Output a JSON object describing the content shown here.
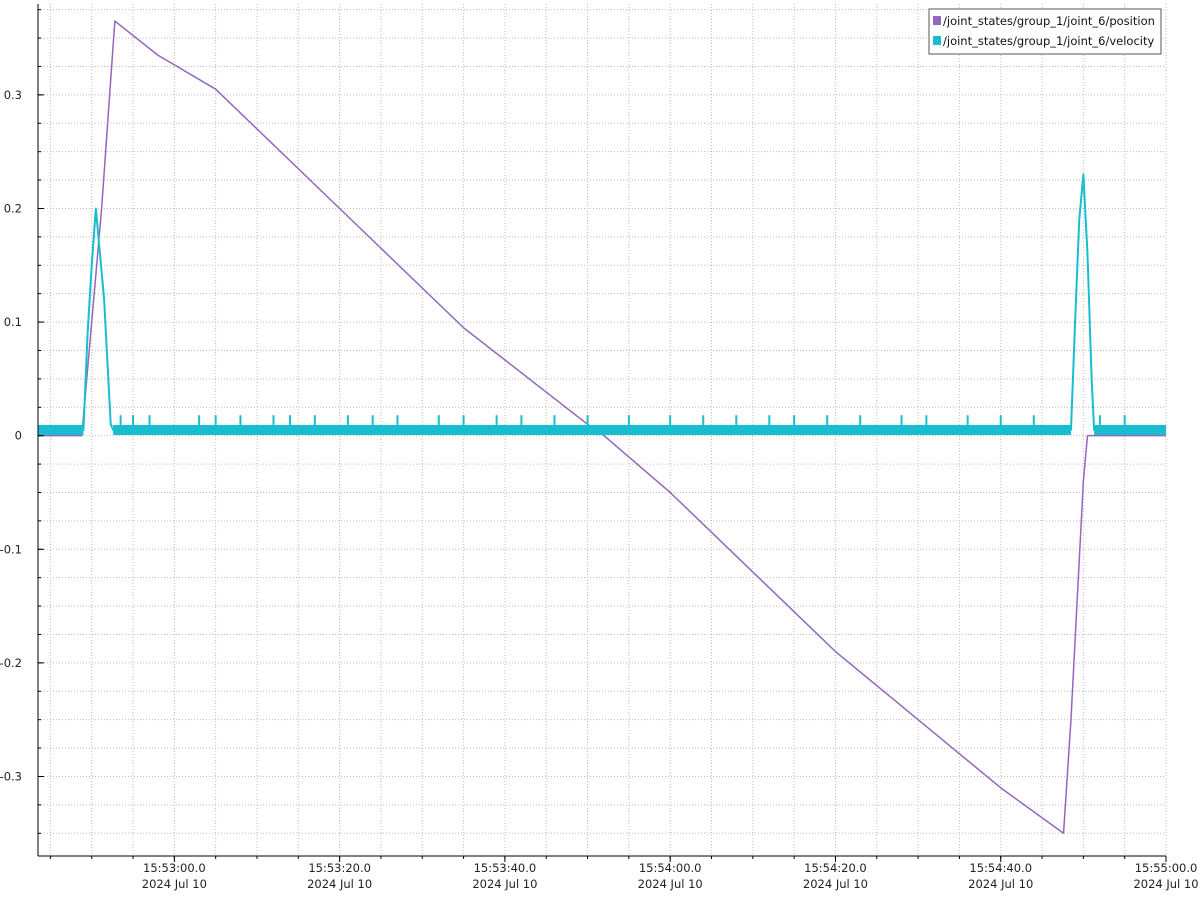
{
  "chart_data": {
    "type": "line",
    "title": "",
    "xlabel": "",
    "ylabel": "",
    "x_axis": {
      "unit": "datetime",
      "date": "2024 Jul 10",
      "range": [
        "15:52:43.5",
        "15:55:00.0"
      ],
      "ticks": [
        {
          "time": "15:53:00.0",
          "date": "2024 Jul 10"
        },
        {
          "time": "15:53:20.0",
          "date": "2024 Jul 10"
        },
        {
          "time": "15:53:40.0",
          "date": "2024 Jul 10"
        },
        {
          "time": "15:54:00.0",
          "date": "2024 Jul 10"
        },
        {
          "time": "15:54:20.0",
          "date": "2024 Jul 10"
        },
        {
          "time": "15:54:40.0",
          "date": "2024 Jul 10"
        },
        {
          "time": "15:55:00.0",
          "date": "2024 Jul 10"
        }
      ]
    },
    "y_axis": {
      "range": [
        -0.37,
        0.38
      ],
      "ticks": [
        "-0.3",
        "-0.2",
        "-0.1",
        "0",
        "0.1",
        "0.2",
        "0.3"
      ]
    },
    "grid": true,
    "legend": "top-right",
    "series": [
      {
        "name": "/joint_states/group_1/joint_6/position",
        "color": "#9467bd",
        "points": [
          {
            "x": "15:52:43.5",
            "y": 0.0
          },
          {
            "x": "15:52:48.8",
            "y": 0.0
          },
          {
            "x": "15:52:51.2",
            "y": 0.2
          },
          {
            "x": "15:52:52.8",
            "y": 0.365
          },
          {
            "x": "15:52:58.0",
            "y": 0.335
          },
          {
            "x": "15:53:05.0",
            "y": 0.305
          },
          {
            "x": "15:53:20.0",
            "y": 0.2
          },
          {
            "x": "15:53:35.0",
            "y": 0.095
          },
          {
            "x": "15:53:50.0",
            "y": 0.01
          },
          {
            "x": "15:53:52.0",
            "y": 0.0
          },
          {
            "x": "15:54:00.0",
            "y": -0.05
          },
          {
            "x": "15:54:20.0",
            "y": -0.19
          },
          {
            "x": "15:54:40.0",
            "y": -0.31
          },
          {
            "x": "15:54:47.6",
            "y": -0.35
          },
          {
            "x": "15:54:48.5",
            "y": -0.25
          },
          {
            "x": "15:54:50.0",
            "y": -0.04
          },
          {
            "x": "15:54:50.5",
            "y": 0.0
          },
          {
            "x": "15:55:00.0",
            "y": 0.0
          }
        ]
      },
      {
        "name": "/joint_states/group_1/joint_6/velocity",
        "color": "#17becf",
        "baseline": 0.005,
        "spike_level": 0.018,
        "points": [
          {
            "x": "15:52:43.5",
            "y": 0.005
          },
          {
            "x": "15:52:49.0",
            "y": 0.005
          },
          {
            "x": "15:52:49.5",
            "y": 0.09
          },
          {
            "x": "15:52:50.0",
            "y": 0.15
          },
          {
            "x": "15:52:50.5",
            "y": 0.2
          },
          {
            "x": "15:52:51.0",
            "y": 0.16
          },
          {
            "x": "15:52:51.5",
            "y": 0.12
          },
          {
            "x": "15:52:52.3",
            "y": 0.01
          },
          {
            "x": "15:52:52.6",
            "y": 0.005
          },
          {
            "x": "15:54:48.5",
            "y": 0.005
          },
          {
            "x": "15:54:49.0",
            "y": 0.1
          },
          {
            "x": "15:54:49.5",
            "y": 0.19
          },
          {
            "x": "15:54:50.0",
            "y": 0.23
          },
          {
            "x": "15:54:50.5",
            "y": 0.16
          },
          {
            "x": "15:54:51.0",
            "y": 0.05
          },
          {
            "x": "15:54:51.3",
            "y": 0.005
          },
          {
            "x": "15:55:00.0",
            "y": 0.005
          }
        ],
        "spikes_at": [
          "15:52:53.5",
          "15:52:55.0",
          "15:52:57.0",
          "15:53:03.0",
          "15:53:05.0",
          "15:53:08.0",
          "15:53:12.0",
          "15:53:14.0",
          "15:53:17.0",
          "15:53:21.0",
          "15:53:24.0",
          "15:53:27.0",
          "15:53:32.0",
          "15:53:35.0",
          "15:53:39.0",
          "15:53:42.0",
          "15:53:46.0",
          "15:53:50.0",
          "15:53:55.0",
          "15:54:00.0",
          "15:54:04.0",
          "15:54:08.0",
          "15:54:12.0",
          "15:54:15.0",
          "15:54:19.0",
          "15:54:23.0",
          "15:54:28.0",
          "15:54:31.0",
          "15:54:36.0",
          "15:54:40.0",
          "15:54:44.0",
          "15:54:52.0",
          "15:54:55.0"
        ]
      }
    ]
  }
}
